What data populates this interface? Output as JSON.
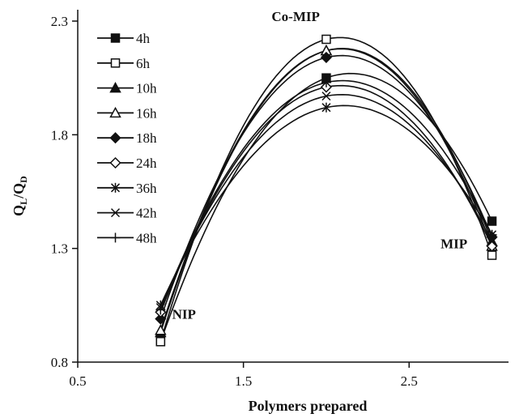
{
  "chart_data": {
    "type": "line",
    "xlabel": "Polymers prepared",
    "ylabel": "QL/QD",
    "ylabel_main": "Q",
    "ylabel_sub1": "L",
    "ylabel_mid": "/Q",
    "ylabel_sub2": "D",
    "xlim": [
      0.5,
      3.1
    ],
    "ylim": [
      0.8,
      2.35
    ],
    "xticks": [
      0.5,
      1.5,
      2.5
    ],
    "xtick_labels": [
      "0.5",
      "1.5",
      "2.5"
    ],
    "yticks": [
      0.8,
      1.3,
      1.8,
      2.3
    ],
    "ytick_labels": [
      "0.8",
      "1.3",
      "1.8",
      "2.3"
    ],
    "grid": false,
    "legend_position": "top-left",
    "x": [
      1,
      2,
      3
    ],
    "annotations": [
      {
        "text": "NIP",
        "x": 1.07,
        "y": 0.99
      },
      {
        "text": "Co-MIP",
        "x": 1.67,
        "y": 2.3
      },
      {
        "text": "MIP",
        "x": 2.69,
        "y": 1.3
      }
    ],
    "series": [
      {
        "name": "4h",
        "marker": "square-filled",
        "values": [
          0.89,
          2.05,
          1.42
        ]
      },
      {
        "name": "6h",
        "marker": "square-open",
        "values": [
          0.89,
          2.22,
          1.27
        ]
      },
      {
        "name": "10h",
        "marker": "triangle-filled",
        "values": [
          0.93,
          2.17,
          1.33
        ]
      },
      {
        "name": "16h",
        "marker": "triangle-open",
        "values": [
          0.94,
          2.17,
          1.31
        ]
      },
      {
        "name": "18h",
        "marker": "diamond-filled",
        "values": [
          0.99,
          2.14,
          1.35
        ]
      },
      {
        "name": "24h",
        "marker": "diamond-open",
        "values": [
          1.02,
          2.01,
          1.31
        ]
      },
      {
        "name": "36h",
        "marker": "asterisk",
        "values": [
          1.05,
          1.92,
          1.36
        ]
      },
      {
        "name": "42h",
        "marker": "x",
        "values": [
          1.04,
          1.97,
          1.33
        ]
      },
      {
        "name": "48h",
        "marker": "plus",
        "values": [
          1.03,
          2.03,
          1.36
        ]
      }
    ]
  }
}
